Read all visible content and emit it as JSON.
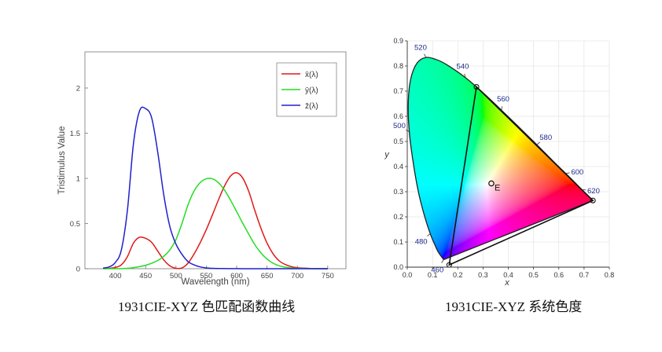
{
  "captions": {
    "left": "1931CIE-XYZ 色匹配函数曲线",
    "right": "1931CIE-XYZ 系统色度"
  },
  "chart_data": [
    {
      "type": "line",
      "title": "",
      "xlabel": "Wavelength (nm)",
      "ylabel": "Tristimulus Value",
      "xlim": [
        350,
        780
      ],
      "ylim": [
        0,
        2.4
      ],
      "xticks": [
        "400",
        "450",
        "500",
        "550",
        "600",
        "650",
        "700",
        "750"
      ],
      "yticks": [
        "0",
        "0.5",
        "1",
        "1.5",
        "2"
      ],
      "grid": false,
      "legend_position": "top-right",
      "x": [
        380,
        390,
        400,
        410,
        420,
        430,
        440,
        450,
        460,
        470,
        480,
        490,
        500,
        510,
        520,
        530,
        540,
        550,
        560,
        570,
        580,
        590,
        600,
        610,
        620,
        630,
        640,
        650,
        660,
        670,
        680,
        690,
        700,
        710,
        720,
        730,
        740,
        750
      ],
      "series": [
        {
          "name": "x̄(λ)",
          "color": "#e01818",
          "values": [
            0.001,
            0.004,
            0.014,
            0.043,
            0.134,
            0.284,
            0.348,
            0.336,
            0.291,
            0.195,
            0.096,
            0.032,
            0.005,
            0.009,
            0.063,
            0.165,
            0.29,
            0.433,
            0.595,
            0.762,
            0.916,
            1.026,
            1.062,
            1.003,
            0.854,
            0.642,
            0.448,
            0.284,
            0.165,
            0.087,
            0.047,
            0.023,
            0.011,
            0.006,
            0.003,
            0.001,
            0.001,
            0.0
          ]
        },
        {
          "name": "ȳ(λ)",
          "color": "#22dd22",
          "values": [
            0.0,
            0.0,
            0.0,
            0.001,
            0.004,
            0.012,
            0.023,
            0.038,
            0.06,
            0.091,
            0.139,
            0.208,
            0.323,
            0.503,
            0.71,
            0.862,
            0.954,
            0.995,
            0.995,
            0.952,
            0.87,
            0.757,
            0.631,
            0.503,
            0.381,
            0.265,
            0.175,
            0.107,
            0.061,
            0.032,
            0.017,
            0.008,
            0.004,
            0.002,
            0.001,
            0.001,
            0.0,
            0.0
          ]
        },
        {
          "name": "z̄(λ)",
          "color": "#2020cc",
          "values": [
            0.007,
            0.02,
            0.068,
            0.207,
            0.646,
            1.386,
            1.747,
            1.772,
            1.669,
            1.288,
            0.813,
            0.465,
            0.272,
            0.158,
            0.078,
            0.042,
            0.02,
            0.009,
            0.004,
            0.002,
            0.002,
            0.001,
            0.001,
            0.0,
            0.0,
            0.0,
            0.0,
            0.0,
            0.0,
            0.0,
            0.0,
            0.0,
            0.0,
            0.0,
            0.0,
            0.0,
            0.0,
            0.0
          ]
        }
      ]
    },
    {
      "type": "scatter",
      "title": "",
      "xlabel": "x",
      "ylabel": "y",
      "xlim": [
        0,
        0.8
      ],
      "ylim": [
        0,
        0.9
      ],
      "xticks": [
        "0.0",
        "0.1",
        "0.2",
        "0.3",
        "0.4",
        "0.5",
        "0.6",
        "0.7",
        "0.8"
      ],
      "yticks": [
        "0.0",
        "0.1",
        "0.2",
        "0.3",
        "0.4",
        "0.5",
        "0.6",
        "0.7",
        "0.8",
        "0.9"
      ],
      "grid": true,
      "locus": [
        {
          "nm": 460,
          "x": 0.144,
          "y": 0.03
        },
        {
          "nm": 470,
          "x": 0.124,
          "y": 0.058
        },
        {
          "nm": 475,
          "x": 0.11,
          "y": 0.087
        },
        {
          "nm": 480,
          "x": 0.091,
          "y": 0.133
        },
        {
          "nm": 485,
          "x": 0.069,
          "y": 0.201
        },
        {
          "nm": 490,
          "x": 0.045,
          "y": 0.295
        },
        {
          "nm": 495,
          "x": 0.024,
          "y": 0.413
        },
        {
          "nm": 500,
          "x": 0.008,
          "y": 0.538
        },
        {
          "nm": 505,
          "x": 0.004,
          "y": 0.655
        },
        {
          "nm": 510,
          "x": 0.014,
          "y": 0.75
        },
        {
          "nm": 515,
          "x": 0.039,
          "y": 0.812
        },
        {
          "nm": 520,
          "x": 0.074,
          "y": 0.834
        },
        {
          "nm": 525,
          "x": 0.114,
          "y": 0.826
        },
        {
          "nm": 530,
          "x": 0.155,
          "y": 0.806
        },
        {
          "nm": 540,
          "x": 0.23,
          "y": 0.754
        },
        {
          "nm": 550,
          "x": 0.302,
          "y": 0.692
        },
        {
          "nm": 560,
          "x": 0.373,
          "y": 0.624
        },
        {
          "nm": 570,
          "x": 0.444,
          "y": 0.555
        },
        {
          "nm": 580,
          "x": 0.513,
          "y": 0.487
        },
        {
          "nm": 590,
          "x": 0.575,
          "y": 0.424
        },
        {
          "nm": 600,
          "x": 0.627,
          "y": 0.373
        },
        {
          "nm": 610,
          "x": 0.666,
          "y": 0.334
        },
        {
          "nm": 620,
          "x": 0.691,
          "y": 0.308
        },
        {
          "nm": 640,
          "x": 0.719,
          "y": 0.281
        },
        {
          "nm": 700,
          "x": 0.735,
          "y": 0.265
        }
      ],
      "wavelength_labels": [
        {
          "text": "460",
          "x": 0.144,
          "y": 0.03
        },
        {
          "text": "480",
          "x": 0.091,
          "y": 0.133
        },
        {
          "text": "500",
          "x": 0.008,
          "y": 0.538
        },
        {
          "text": "520",
          "x": 0.074,
          "y": 0.834
        },
        {
          "text": "540",
          "x": 0.23,
          "y": 0.754
        },
        {
          "text": "560",
          "x": 0.373,
          "y": 0.624
        },
        {
          "text": "580",
          "x": 0.513,
          "y": 0.487
        },
        {
          "text": "600",
          "x": 0.627,
          "y": 0.373
        },
        {
          "text": "620",
          "x": 0.691,
          "y": 0.308
        }
      ],
      "triangle": [
        {
          "x": 0.166,
          "y": 0.009
        },
        {
          "x": 0.274,
          "y": 0.717
        },
        {
          "x": 0.735,
          "y": 0.265
        }
      ],
      "white_point": {
        "label": "E",
        "x": 0.333,
        "y": 0.333
      }
    }
  ]
}
